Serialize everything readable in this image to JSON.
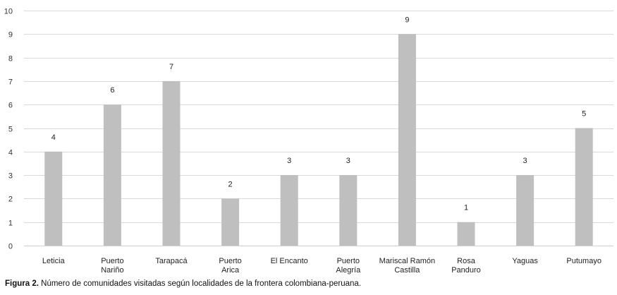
{
  "chart_data": {
    "type": "bar",
    "categories": [
      [
        "Leticia"
      ],
      [
        "Puerto",
        "Nariño"
      ],
      [
        "Tarapacá"
      ],
      [
        "Puerto",
        "Arica"
      ],
      [
        "El Encanto"
      ],
      [
        "Puerto",
        "Alegría"
      ],
      [
        "Mariscal Ramón",
        "Castilla"
      ],
      [
        "Rosa",
        "Panduro"
      ],
      [
        "Yaguas"
      ],
      [
        "Putumayo"
      ]
    ],
    "values": [
      4,
      6,
      7,
      2,
      3,
      3,
      9,
      1,
      3,
      5
    ],
    "data_labels": [
      "4",
      "6",
      "7",
      "2",
      "3",
      "3",
      "9",
      "1",
      "3",
      "5"
    ],
    "ylim": [
      0,
      10
    ],
    "yticks": [
      0,
      1,
      2,
      3,
      4,
      5,
      6,
      7,
      8,
      9,
      10
    ],
    "grid": true,
    "bar_color": "#bfbfbf",
    "grid_color": "#d9d9d9"
  },
  "caption": {
    "label": "Figura 2.",
    "text": " Número de comunidades visitadas según localidades de la frontera colombiana-peruana."
  }
}
